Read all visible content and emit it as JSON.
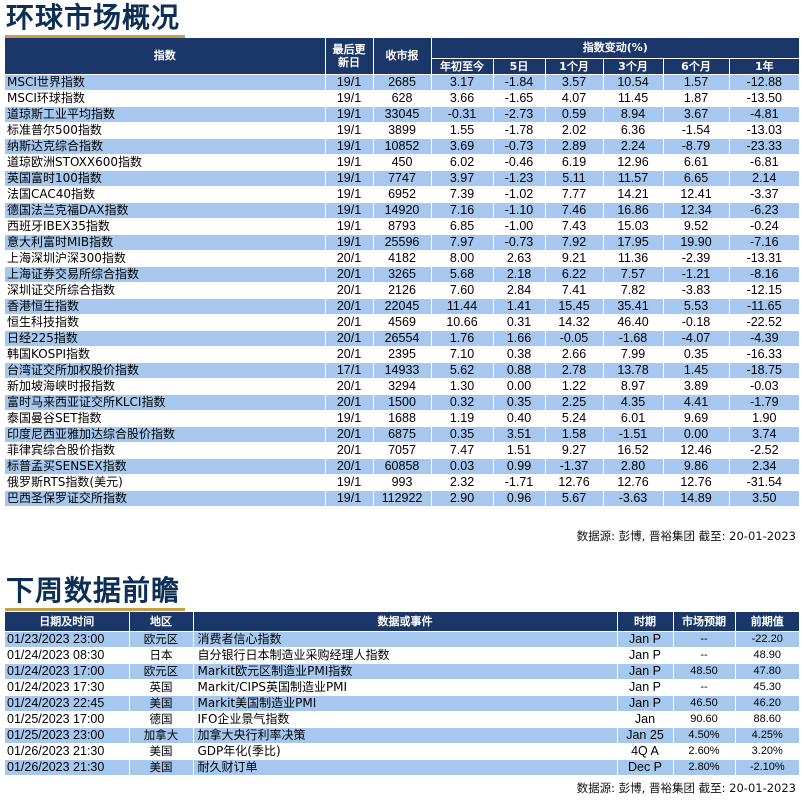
{
  "market": {
    "title": "环球市场概况",
    "headers": {
      "index": "指数",
      "last_update": "最后更新日",
      "close": "收市报",
      "change_group": "指数变动(%)",
      "ytd": "年初至今",
      "d5": "5日",
      "m1": "1个月",
      "m3": "3个月",
      "m6": "6个月",
      "y1": "1年"
    },
    "rows": [
      {
        "name": "MSCI世界指数",
        "date": "19/1",
        "close": "2685",
        "ytd": "3.17",
        "d5": "-1.84",
        "m1": "3.57",
        "m3": "10.54",
        "m6": "1.57",
        "y1": "-12.88"
      },
      {
        "name": "MSCI环球指数",
        "date": "19/1",
        "close": "628",
        "ytd": "3.66",
        "d5": "-1.65",
        "m1": "4.07",
        "m3": "11.45",
        "m6": "1.87",
        "y1": "-13.50"
      },
      {
        "name": "道琼斯工业平均指数",
        "date": "19/1",
        "close": "33045",
        "ytd": "-0.31",
        "d5": "-2.73",
        "m1": "0.59",
        "m3": "8.94",
        "m6": "3.67",
        "y1": "-4.81"
      },
      {
        "name": "标准普尔500指数",
        "date": "19/1",
        "close": "3899",
        "ytd": "1.55",
        "d5": "-1.78",
        "m1": "2.02",
        "m3": "6.36",
        "m6": "-1.54",
        "y1": "-13.03"
      },
      {
        "name": "纳斯达克综合指数",
        "date": "19/1",
        "close": "10852",
        "ytd": "3.69",
        "d5": "-0.73",
        "m1": "2.89",
        "m3": "2.24",
        "m6": "-8.79",
        "y1": "-23.33"
      },
      {
        "name": "道琼欧洲STOXX600指数",
        "date": "19/1",
        "close": "450",
        "ytd": "6.02",
        "d5": "-0.46",
        "m1": "6.19",
        "m3": "12.96",
        "m6": "6.61",
        "y1": "-6.81"
      },
      {
        "name": "英国富时100指数",
        "date": "19/1",
        "close": "7747",
        "ytd": "3.97",
        "d5": "-1.23",
        "m1": "5.11",
        "m3": "11.57",
        "m6": "6.65",
        "y1": "2.14"
      },
      {
        "name": "法国CAC40指数",
        "date": "19/1",
        "close": "6952",
        "ytd": "7.39",
        "d5": "-1.02",
        "m1": "7.77",
        "m3": "14.21",
        "m6": "12.41",
        "y1": "-3.37"
      },
      {
        "name": "德国法兰克福DAX指数",
        "date": "19/1",
        "close": "14920",
        "ytd": "7.16",
        "d5": "-1.10",
        "m1": "7.46",
        "m3": "16.86",
        "m6": "12.34",
        "y1": "-6.23"
      },
      {
        "name": "西班牙IBEX35指数",
        "date": "19/1",
        "close": "8793",
        "ytd": "6.85",
        "d5": "-1.00",
        "m1": "7.43",
        "m3": "15.03",
        "m6": "9.52",
        "y1": "-0.24"
      },
      {
        "name": "意大利富时MIB指数",
        "date": "19/1",
        "close": "25596",
        "ytd": "7.97",
        "d5": "-0.73",
        "m1": "7.92",
        "m3": "17.95",
        "m6": "19.90",
        "y1": "-7.16"
      },
      {
        "name": "上海深圳沪深300指数",
        "date": "20/1",
        "close": "4182",
        "ytd": "8.00",
        "d5": "2.63",
        "m1": "9.21",
        "m3": "11.36",
        "m6": "-2.39",
        "y1": "-13.31"
      },
      {
        "name": "上海证券交易所综合指数",
        "date": "20/1",
        "close": "3265",
        "ytd": "5.68",
        "d5": "2.18",
        "m1": "6.22",
        "m3": "7.57",
        "m6": "-1.21",
        "y1": "-8.16"
      },
      {
        "name": "深圳证交所综合指数",
        "date": "20/1",
        "close": "2126",
        "ytd": "7.60",
        "d5": "2.84",
        "m1": "7.41",
        "m3": "7.82",
        "m6": "-3.83",
        "y1": "-12.15"
      },
      {
        "name": "香港恒生指数",
        "date": "20/1",
        "close": "22045",
        "ytd": "11.44",
        "d5": "1.41",
        "m1": "15.45",
        "m3": "35.41",
        "m6": "5.53",
        "y1": "-11.65"
      },
      {
        "name": "恒生科技指数",
        "date": "20/1",
        "close": "4569",
        "ytd": "10.66",
        "d5": "0.31",
        "m1": "14.32",
        "m3": "46.40",
        "m6": "-0.18",
        "y1": "-22.52"
      },
      {
        "name": "日经225指数",
        "date": "20/1",
        "close": "26554",
        "ytd": "1.76",
        "d5": "1.66",
        "m1": "-0.05",
        "m3": "-1.68",
        "m6": "-4.07",
        "y1": "-4.39"
      },
      {
        "name": "韩国KOSPI指数",
        "date": "20/1",
        "close": "2395",
        "ytd": "7.10",
        "d5": "0.38",
        "m1": "2.66",
        "m3": "7.99",
        "m6": "0.35",
        "y1": "-16.33"
      },
      {
        "name": "台湾证交所加权股价指数",
        "date": "17/1",
        "close": "14933",
        "ytd": "5.62",
        "d5": "0.88",
        "m1": "2.78",
        "m3": "13.78",
        "m6": "1.45",
        "y1": "-18.75"
      },
      {
        "name": "新加坡海峡时报指数",
        "date": "20/1",
        "close": "3294",
        "ytd": "1.30",
        "d5": "0.00",
        "m1": "1.22",
        "m3": "8.97",
        "m6": "3.89",
        "y1": "-0.03"
      },
      {
        "name": "富时马来西亚证交所KLCI指数",
        "date": "20/1",
        "close": "1500",
        "ytd": "0.32",
        "d5": "0.35",
        "m1": "2.25",
        "m3": "4.35",
        "m6": "4.41",
        "y1": "-1.79"
      },
      {
        "name": "泰国曼谷SET指数",
        "date": "19/1",
        "close": "1688",
        "ytd": "1.19",
        "d5": "0.40",
        "m1": "5.24",
        "m3": "6.01",
        "m6": "9.69",
        "y1": "1.90"
      },
      {
        "name": "印度尼西亚雅加达综合股价指数",
        "date": "20/1",
        "close": "6875",
        "ytd": "0.35",
        "d5": "3.51",
        "m1": "1.58",
        "m3": "-1.51",
        "m6": "0.00",
        "y1": "3.74"
      },
      {
        "name": "菲律宾综合股价指数",
        "date": "20/1",
        "close": "7057",
        "ytd": "7.47",
        "d5": "1.51",
        "m1": "9.27",
        "m3": "16.52",
        "m6": "12.46",
        "y1": "-2.52"
      },
      {
        "name": "标普孟买SENSEX指数",
        "date": "20/1",
        "close": "60858",
        "ytd": "0.03",
        "d5": "0.99",
        "m1": "-1.37",
        "m3": "2.80",
        "m6": "9.86",
        "y1": "2.34"
      },
      {
        "name": "俄罗斯RTS指数(美元)",
        "date": "19/1",
        "close": "993",
        "ytd": "2.32",
        "d5": "-1.71",
        "m1": "12.76",
        "m3": "12.76",
        "m6": "12.76",
        "y1": "-31.54"
      },
      {
        "name": "巴西圣保罗证交所指数",
        "date": "19/1",
        "close": "112922",
        "ytd": "2.90",
        "d5": "0.96",
        "m1": "5.67",
        "m3": "-3.63",
        "m6": "14.89",
        "y1": "3.50"
      }
    ],
    "source": "数据源: 彭博, 晋裕集团 截至: 20-01-2023"
  },
  "outlook": {
    "title": "下周数据前瞻",
    "headers": {
      "datetime": "日期及时间",
      "region": "地区",
      "event": "数据或事件",
      "period": "时期",
      "expected": "市场预期",
      "previous": "前期值"
    },
    "rows": [
      {
        "datetime": "01/23/2023 23:00",
        "region": "欧元区",
        "event": "消费者信心指数",
        "period": "Jan P",
        "expected": "--",
        "previous": "-22.20"
      },
      {
        "datetime": "01/24/2023 08:30",
        "region": "日本",
        "event": "自分银行日本制造业采购经理人指数",
        "period": "Jan P",
        "expected": "--",
        "previous": "48.90"
      },
      {
        "datetime": "01/24/2023 17:00",
        "region": "欧元区",
        "event": "Markit欧元区制造业PMI指数",
        "period": "Jan P",
        "expected": "48.50",
        "previous": "47.80"
      },
      {
        "datetime": "01/24/2023 17:30",
        "region": "英国",
        "event": "Markit/CIPS英国制造业PMI",
        "period": "Jan P",
        "expected": "--",
        "previous": "45.30"
      },
      {
        "datetime": "01/24/2023 22:45",
        "region": "美国",
        "event": "Markit美国制造业PMI",
        "period": "Jan P",
        "expected": "46.50",
        "previous": "46.20"
      },
      {
        "datetime": "01/25/2023 17:00",
        "region": "德国",
        "event": "IFO企业景气指数",
        "period": "Jan",
        "expected": "90.60",
        "previous": "88.60"
      },
      {
        "datetime": "01/25/2023 23:00",
        "region": "加拿大",
        "event": "加拿大央行利率决策",
        "period": "Jan 25",
        "expected": "4.50%",
        "previous": "4.25%"
      },
      {
        "datetime": "01/26/2023 21:30",
        "region": "美国",
        "event": "GDP年化(季比)",
        "period": "4Q A",
        "expected": "2.60%",
        "previous": "3.20%"
      },
      {
        "datetime": "01/26/2023 21:30",
        "region": "美国",
        "event": "耐久财订单",
        "period": "Dec P",
        "expected": "2.80%",
        "previous": "-2.10%"
      }
    ],
    "source": "数据源: 彭博, 晋裕集团 截至: 20-01-2023"
  }
}
